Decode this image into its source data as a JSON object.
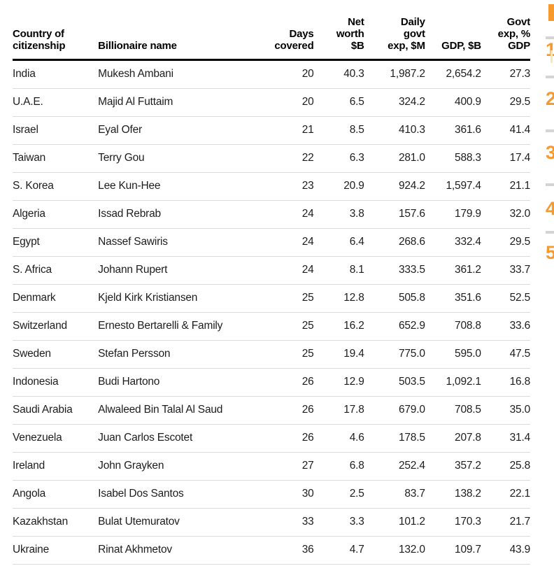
{
  "colors": {
    "accent_orange": "#f8992d",
    "text": "#1d1d1d",
    "header_rule": "#000000",
    "row_divider": "#dcdcdc"
  },
  "chart_data": {
    "type": "table",
    "columns": [
      {
        "label": "Country of\ncitizenship"
      },
      {
        "label": "Billionaire name"
      },
      {
        "label": "Days\ncovered"
      },
      {
        "label": "Net\nworth\n$B"
      },
      {
        "label": "Daily\ngovt\nexp, $M"
      },
      {
        "label": "GDP, $B"
      },
      {
        "label": "Govt\nexp, %\nGDP"
      }
    ],
    "rows": [
      [
        "India",
        "Mukesh Ambani",
        "20",
        "40.3",
        "1,987.2",
        "2,654.2",
        "27.3"
      ],
      [
        "U.A.E.",
        "Majid Al Futtaim",
        "20",
        "6.5",
        "324.2",
        "400.9",
        "29.5"
      ],
      [
        "Israel",
        "Eyal Ofer",
        "21",
        "8.5",
        "410.3",
        "361.6",
        "41.4"
      ],
      [
        "Taiwan",
        "Terry Gou",
        "22",
        "6.3",
        "281.0",
        "588.3",
        "17.4"
      ],
      [
        "S. Korea",
        "Lee Kun-Hee",
        "23",
        "20.9",
        "924.2",
        "1,597.4",
        "21.1"
      ],
      [
        "Algeria",
        "Issad Rebrab",
        "24",
        "3.8",
        "157.6",
        "179.9",
        "32.0"
      ],
      [
        "Egypt",
        "Nassef Sawiris",
        "24",
        "6.4",
        "268.6",
        "332.4",
        "29.5"
      ],
      [
        "S. Africa",
        "Johann Rupert",
        "24",
        "8.1",
        "333.5",
        "361.2",
        "33.7"
      ],
      [
        "Denmark",
        "Kjeld Kirk Kristiansen",
        "25",
        "12.8",
        "505.8",
        "351.6",
        "52.5"
      ],
      [
        "Switzerland",
        "Ernesto Bertarelli & Family",
        "25",
        "16.2",
        "652.9",
        "708.8",
        "33.6"
      ],
      [
        "Sweden",
        "Stefan Persson",
        "25",
        "19.4",
        "775.0",
        "595.0",
        "47.5"
      ],
      [
        "Indonesia",
        "Budi Hartono",
        "26",
        "12.9",
        "503.5",
        "1,092.1",
        "16.8"
      ],
      [
        "Saudi Arabia",
        "Alwaleed Bin Talal Al Saud",
        "26",
        "17.8",
        "679.0",
        "708.5",
        "35.0"
      ],
      [
        "Venezuela",
        "Juan Carlos Escotet",
        "26",
        "4.6",
        "178.5",
        "207.8",
        "31.4"
      ],
      [
        "Ireland",
        "John Grayken",
        "27",
        "6.8",
        "252.4",
        "357.2",
        "25.8"
      ],
      [
        "Angola",
        "Isabel Dos Santos",
        "30",
        "2.5",
        "83.7",
        "138.2",
        "22.1"
      ],
      [
        "Kazakhstan",
        "Bulat Utemuratov",
        "33",
        "3.3",
        "101.2",
        "170.3",
        "21.7"
      ],
      [
        "Ukraine",
        "Rinat Akhmetov",
        "36",
        "4.7",
        "132.0",
        "109.7",
        "43.9"
      ]
    ]
  },
  "edge_panel": {
    "rank_labels": [
      "1",
      "2",
      "3",
      "4",
      "5"
    ]
  }
}
